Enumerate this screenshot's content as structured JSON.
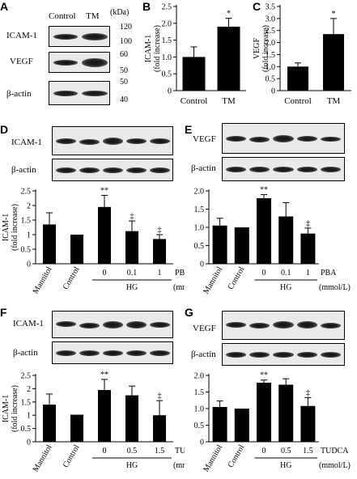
{
  "letters": {
    "A": "A",
    "B": "B",
    "C": "C",
    "D": "D",
    "E": "E",
    "F": "F",
    "G": "G"
  },
  "panelA": {
    "lane_labels": [
      "Control",
      "TM"
    ],
    "unit": "(kDa)",
    "blots": [
      {
        "label": "ICAM-1",
        "markers": [
          "120",
          "100"
        ]
      },
      {
        "label": "VEGF",
        "markers": [
          "60",
          "50"
        ]
      },
      {
        "label": "β-actin",
        "markers": [
          "50",
          "40"
        ]
      }
    ]
  },
  "blots": {
    "D": [
      "ICAM-1",
      "β-actin"
    ],
    "E": [
      "VEGF",
      "β-actin"
    ],
    "F": [
      "ICAM-1",
      "β-actin"
    ],
    "G": [
      "VEGF",
      "β-actin"
    ]
  },
  "chart_data": [
    {
      "id": "B",
      "type": "bar",
      "categories": [
        "Control",
        "TM"
      ],
      "values": [
        1.0,
        1.9
      ],
      "errors": [
        0.3,
        0.25
      ],
      "sig": [
        "",
        "*"
      ],
      "ylabel": [
        "ICAM-1",
        "(fold increase)"
      ],
      "ylim": [
        0,
        2.5
      ],
      "ticks": [
        "0",
        "0.5",
        "1.0",
        "1.5",
        "2.0",
        "2.5"
      ]
    },
    {
      "id": "C",
      "type": "bar",
      "categories": [
        "Control",
        "TM"
      ],
      "values": [
        1.0,
        2.35
      ],
      "errors": [
        0.15,
        0.65
      ],
      "sig": [
        "",
        "*"
      ],
      "ylabel": [
        "VEGF",
        "(fold increase)"
      ],
      "ylim": [
        0,
        3.5
      ],
      "ticks": [
        "0",
        "0.5",
        "1.0",
        "1.5",
        "2.0",
        "2.5",
        "3.0",
        "3.5"
      ]
    },
    {
      "id": "D",
      "type": "bar",
      "categories": [
        "Mannitol",
        "Control",
        "0",
        "0.1",
        "1"
      ],
      "values": [
        1.35,
        1.0,
        1.95,
        1.12,
        0.85
      ],
      "errors": [
        0.4,
        0,
        0.4,
        0.35,
        0.15
      ],
      "sig": [
        "",
        "",
        "**",
        "‡",
        "‡"
      ],
      "ylabel": [
        "ICAM-1",
        "(fold increase)"
      ],
      "ylim": [
        0,
        2.5
      ],
      "ticks": [
        "0",
        "0.5",
        "1",
        "1.5",
        "2",
        "2.5"
      ],
      "group_label": "HG",
      "drug": "PBA",
      "unit": "(mmol/L)"
    },
    {
      "id": "E",
      "type": "bar",
      "categories": [
        "Mannitol",
        "Control",
        "0",
        "0.1",
        "1"
      ],
      "values": [
        1.05,
        1.0,
        1.8,
        1.3,
        0.83
      ],
      "errors": [
        0.2,
        0,
        0.1,
        0.38,
        0.15
      ],
      "sig": [
        "",
        "",
        "**",
        "",
        "‡"
      ],
      "ylabel": [],
      "ylim": [
        0,
        2.0
      ],
      "ticks": [
        "0",
        "0.5",
        "1.0",
        "1.5",
        "2.0"
      ],
      "group_label": "HG",
      "drug": "PBA",
      "unit": "(mmol/L)"
    },
    {
      "id": "F",
      "type": "bar",
      "categories": [
        "Mannitol",
        "Control",
        "0",
        "0.5",
        "1.5"
      ],
      "values": [
        1.4,
        1.02,
        1.95,
        1.75,
        1.0
      ],
      "errors": [
        0.4,
        0,
        0.4,
        0.35,
        0.55
      ],
      "sig": [
        "",
        "",
        "**",
        "",
        "‡"
      ],
      "ylabel": [
        "ICAM-1",
        "(fold increase)"
      ],
      "ylim": [
        0,
        2.5
      ],
      "ticks": [
        "0",
        "0.5",
        "1",
        "1.5",
        "2",
        "2.5"
      ],
      "group_label": "HG",
      "drug": "TUDCA",
      "unit": "(mmol/L)"
    },
    {
      "id": "G",
      "type": "bar",
      "categories": [
        "Mannitol",
        "Control",
        "0",
        "0.5",
        "1.5"
      ],
      "values": [
        1.05,
        1.0,
        1.78,
        1.72,
        1.08
      ],
      "errors": [
        0.18,
        0,
        0.08,
        0.18,
        0.25
      ],
      "sig": [
        "",
        "",
        "**",
        "",
        "‡"
      ],
      "ylabel": [],
      "ylim": [
        0,
        2.0
      ],
      "ticks": [
        "0",
        "0.5",
        "1.0",
        "1.5",
        "2.0"
      ],
      "group_label": "HG",
      "drug": "TUDCA",
      "unit": "(mmol/L)"
    }
  ]
}
